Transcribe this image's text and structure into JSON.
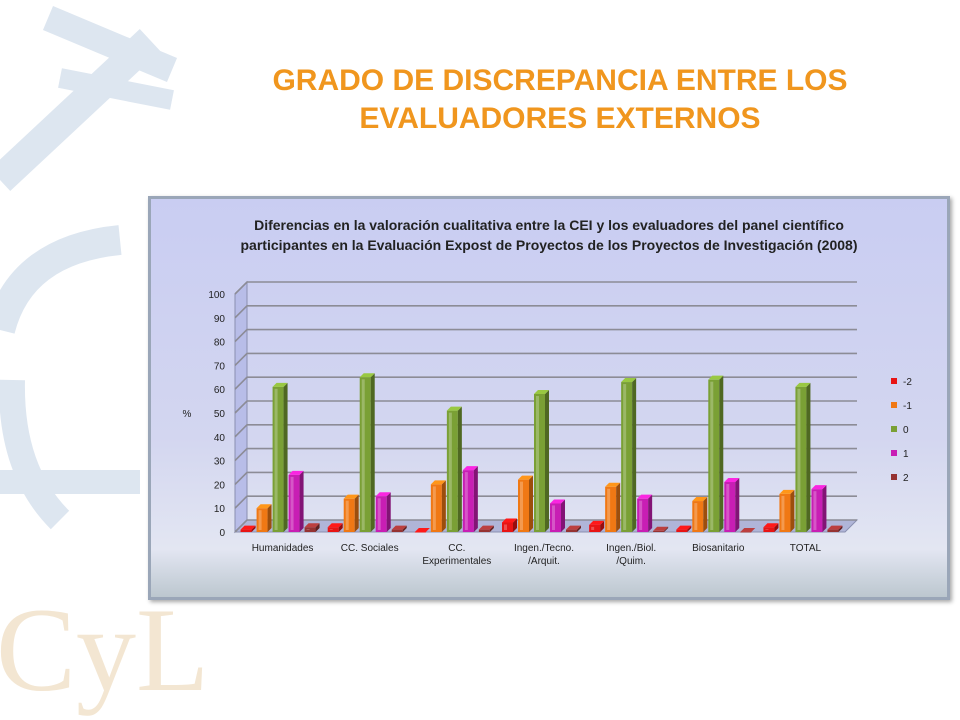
{
  "slide": {
    "title_line1": "GRADO DE DISCREPANCIA ENTRE LOS",
    "title_line2": "EVALUADORES EXTERNOS",
    "logo_text": "CyL"
  },
  "colors": {
    "title": "#f0961e",
    "series": [
      "#e81414",
      "#f07814",
      "#7aa035",
      "#c81eb4",
      "#963232"
    ]
  },
  "chart_data": {
    "type": "bar",
    "title_line1": "Diferencias en la valoración cualitativa entre la CEI y los evaluadores del panel científico",
    "title_line2": "participantes en la Evaluación Expost de Proyectos de los Proyectos de Investigación (2008)",
    "xlabel": "",
    "ylabel": "%",
    "ylim": [
      0,
      100
    ],
    "yticks": [
      0,
      10,
      20,
      30,
      40,
      50,
      60,
      70,
      80,
      90,
      100
    ],
    "grid": true,
    "legend_position": "right",
    "categories": [
      [
        "Humanidades"
      ],
      [
        "CC. Sociales"
      ],
      [
        "CC.",
        "Experimentales"
      ],
      [
        "Ingen./Tecno.",
        "/Arquit."
      ],
      [
        "Ingen./Biol.",
        "/Quim."
      ],
      [
        "Biosanitario"
      ],
      [
        "TOTAL"
      ]
    ],
    "series": [
      {
        "name": "-2",
        "values": [
          1,
          2,
          0,
          4,
          3,
          1,
          2
        ]
      },
      {
        "name": "-1",
        "values": [
          10,
          14,
          20,
          22,
          19,
          13,
          16
        ]
      },
      {
        "name": "0",
        "values": [
          61,
          65,
          51,
          58,
          63,
          64,
          61
        ]
      },
      {
        "name": "1",
        "values": [
          24,
          15,
          26,
          12,
          14,
          21,
          18
        ]
      },
      {
        "name": "2",
        "values": [
          2,
          1,
          1,
          1,
          0.5,
          0,
          1
        ]
      }
    ]
  }
}
